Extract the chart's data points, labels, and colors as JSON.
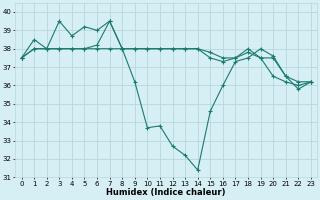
{
  "xlabel": "Humidex (Indice chaleur)",
  "background_color": "#d6eff5",
  "grid_color": "#b8d8dc",
  "line_color": "#1a7a6e",
  "xlim": [
    -0.5,
    23.5
  ],
  "ylim": [
    31,
    40.5
  ],
  "yticks": [
    31,
    32,
    33,
    34,
    35,
    36,
    37,
    38,
    39,
    40
  ],
  "xticks": [
    0,
    1,
    2,
    3,
    4,
    5,
    6,
    7,
    8,
    9,
    10,
    11,
    12,
    13,
    14,
    15,
    16,
    17,
    18,
    19,
    20,
    21,
    22,
    23
  ],
  "series1_x": [
    0,
    1,
    2,
    3,
    4,
    5,
    6,
    7,
    8,
    9,
    10,
    11,
    12,
    13,
    14,
    15,
    16,
    17,
    18,
    19,
    20,
    21,
    22,
    23
  ],
  "series1_y": [
    37.5,
    38.5,
    38.0,
    39.5,
    38.7,
    39.2,
    39.0,
    39.5,
    38.0,
    36.2,
    33.7,
    33.8,
    32.7,
    32.2,
    31.4,
    34.6,
    36.0,
    37.3,
    37.5,
    38.0,
    37.6,
    36.5,
    35.8,
    36.2
  ],
  "series2_x": [
    0,
    1,
    2,
    3,
    4,
    5,
    6,
    7,
    8,
    9,
    10,
    11,
    12,
    13,
    14,
    15,
    16,
    17,
    18,
    19,
    20,
    21,
    22,
    23
  ],
  "series2_y": [
    37.5,
    38.0,
    38.0,
    38.0,
    38.0,
    38.0,
    38.0,
    38.0,
    38.0,
    38.0,
    38.0,
    38.0,
    38.0,
    38.0,
    38.0,
    37.8,
    37.5,
    37.5,
    37.8,
    37.5,
    37.5,
    36.5,
    36.2,
    36.2
  ],
  "series3_x": [
    0,
    1,
    2,
    3,
    4,
    5,
    6,
    7,
    8,
    9,
    10,
    11,
    12,
    13,
    14,
    15,
    16,
    17,
    18,
    19,
    20,
    21,
    22,
    23
  ],
  "series3_y": [
    37.5,
    38.0,
    38.0,
    38.0,
    38.0,
    38.0,
    38.2,
    39.5,
    38.0,
    38.0,
    38.0,
    38.0,
    38.0,
    38.0,
    38.0,
    37.5,
    37.3,
    37.5,
    38.0,
    37.5,
    36.5,
    36.2,
    36.0,
    36.2
  ]
}
